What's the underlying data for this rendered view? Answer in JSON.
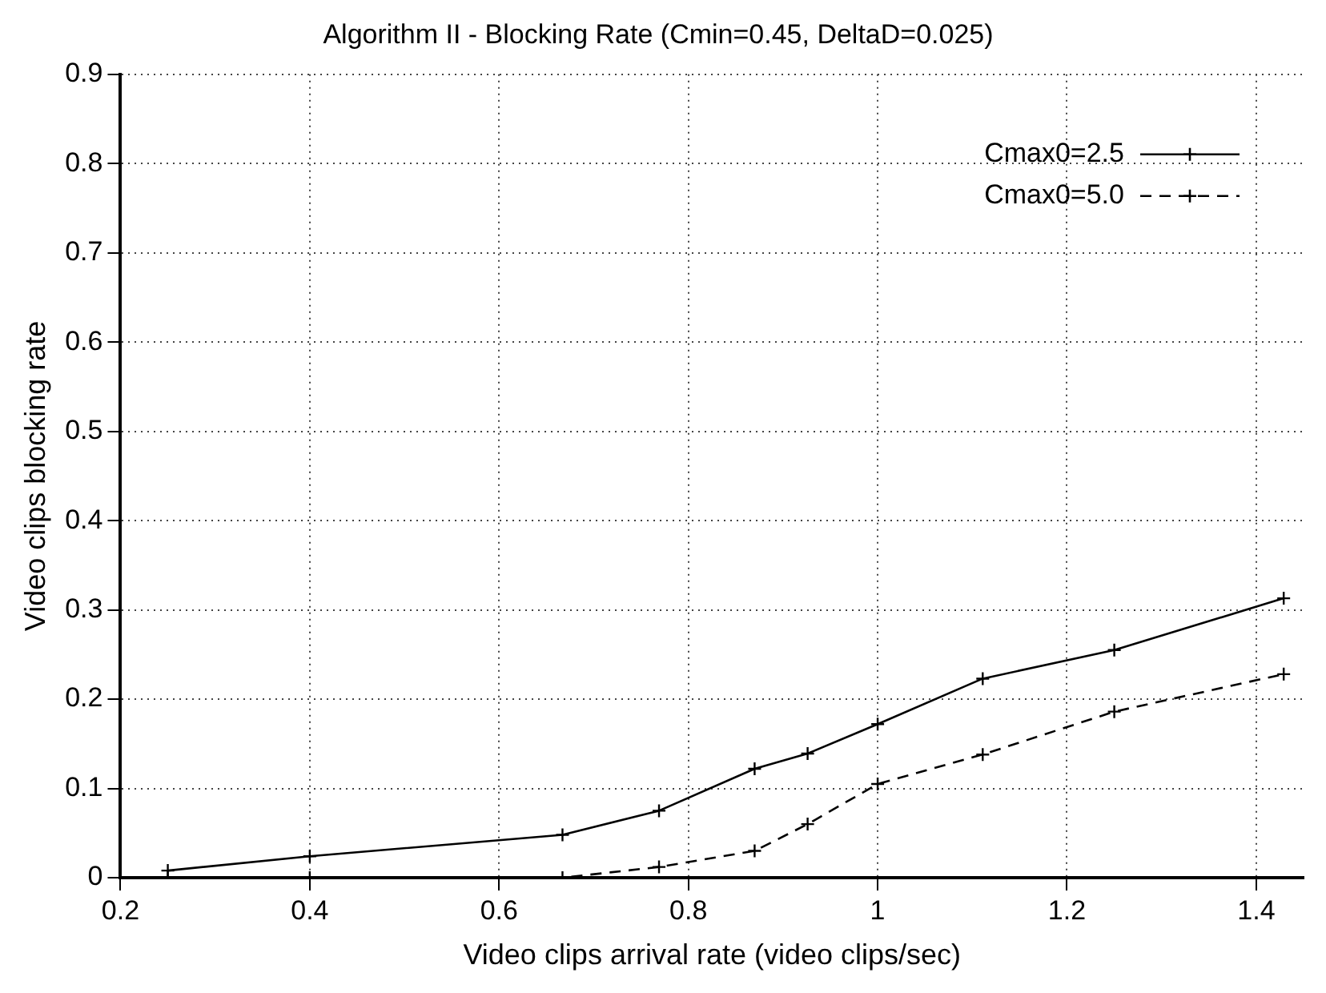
{
  "chart_data": {
    "type": "line",
    "title": "Algorithm II - Blocking Rate (Cmin=0.45, DeltaD=0.025)",
    "xlabel": "Video clips arrival rate (video clips/sec)",
    "ylabel": "Video clips blocking rate",
    "x": [
      0.25,
      0.4,
      0.667,
      0.769,
      0.87,
      0.926,
      1.0,
      1.111,
      1.25,
      1.429
    ],
    "series": [
      {
        "name": "Cmax0=2.5",
        "color": "#000000",
        "line_style": "solid",
        "marker": "cross",
        "values": [
          0.008,
          0.024,
          0.048,
          0.075,
          0.122,
          0.139,
          0.172,
          0.223,
          0.255,
          0.313
        ]
      },
      {
        "name": "Cmax0=5.0",
        "color": "#000000",
        "line_style": "dashed",
        "marker": "cross",
        "values": [
          0,
          0,
          0,
          0.012,
          0.03,
          0.06,
          0.105,
          0.138,
          0.186,
          0.228
        ]
      }
    ],
    "xlim": [
      0.2,
      1.45
    ],
    "xticks": [
      0.2,
      0.4,
      0.6,
      0.8,
      1,
      1.2,
      1.4
    ],
    "ylim": [
      0,
      0.9
    ],
    "yticks": [
      0,
      0.1,
      0.2,
      0.3,
      0.4,
      0.5,
      0.6,
      0.7,
      0.8,
      0.9
    ],
    "grid": true,
    "legend": "top right"
  }
}
